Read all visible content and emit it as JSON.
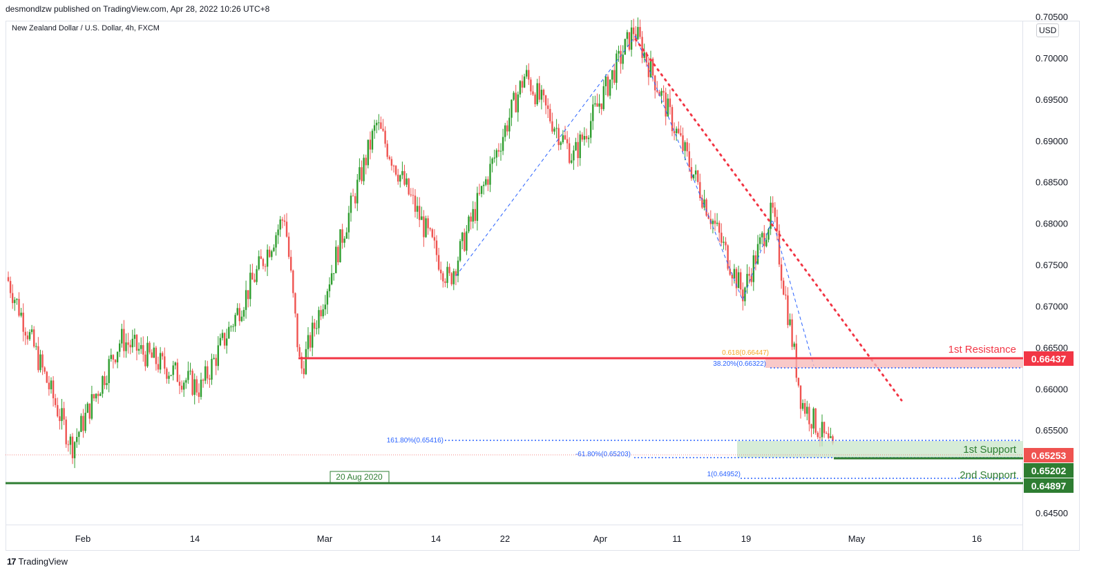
{
  "header": {
    "published": "desmondlzw published on TradingView.com, Apr 28, 2022 10:26 UTC+8"
  },
  "symbol_line": "New Zealand Dollar / U.S. Dollar, 4h, FXCM",
  "currency_button": "USD",
  "brand": {
    "logo": "17",
    "name": "TradingView"
  },
  "colors": {
    "up": "#26a69a",
    "up_green": "#2e9d2e",
    "down": "#ef5350",
    "resistance": "#f23645",
    "support": "#2e7d32",
    "fib_blue": "#2962ff",
    "fib_orange": "#f5a623"
  },
  "chart_data": {
    "type": "candlestick",
    "title": "New Zealand Dollar / U.S. Dollar, 4h, FXCM",
    "ylim": [
      0.6435,
      0.7045
    ],
    "y_ticks": [
      "0.64500",
      "0.65000",
      "0.65500",
      "0.66000",
      "0.66500",
      "0.67000",
      "0.67500",
      "0.68000",
      "0.68500",
      "0.69000",
      "0.69500",
      "0.70000",
      "0.70500"
    ],
    "x_ticks": [
      "Feb",
      "14",
      "Mar",
      "14",
      "22",
      "Apr",
      "11",
      "19",
      "May",
      "16"
    ],
    "swing_points": [
      {
        "date": "Jan 27",
        "price": 0.6735
      },
      {
        "date": "Jan 28",
        "price": 0.653
      },
      {
        "date": "Feb 10",
        "price": 0.666
      },
      {
        "date": "Feb 24",
        "price": 0.66
      },
      {
        "date": "Mar 1",
        "price": 0.681
      },
      {
        "date": "Mar 3",
        "price": 0.662
      },
      {
        "date": "Mar 8",
        "price": 0.692
      },
      {
        "date": "Mar 15",
        "price": 0.673
      },
      {
        "date": "Mar 24",
        "price": 0.698
      },
      {
        "date": "Mar 31",
        "price": 0.688
      },
      {
        "date": "Apr 5",
        "price": 0.7035
      },
      {
        "date": "Apr 18",
        "price": 0.6715
      },
      {
        "date": "Apr 21",
        "price": 0.6815
      },
      {
        "date": "Apr 26",
        "price": 0.6585
      },
      {
        "date": "Apr 28",
        "price": 0.652
      }
    ],
    "levels": {
      "first_resistance": {
        "label": "1st Resistance",
        "value": "0.66437"
      },
      "first_support": {
        "label": "1st Support",
        "value": "0.65202"
      },
      "second_support": {
        "label": "2nd Support",
        "value": "0.64897"
      },
      "last_price": "0.65253"
    },
    "fib_labels": {
      "fib_618": "0.618(0.66447)",
      "fib_382": "38.20%(0.66322)",
      "fib_1618": "161.80%(0.65416)",
      "fib_neg618": "-61.80%(0.65203)",
      "fib_1": "1(0.64952)"
    },
    "date_label": "20 Aug 2020"
  }
}
